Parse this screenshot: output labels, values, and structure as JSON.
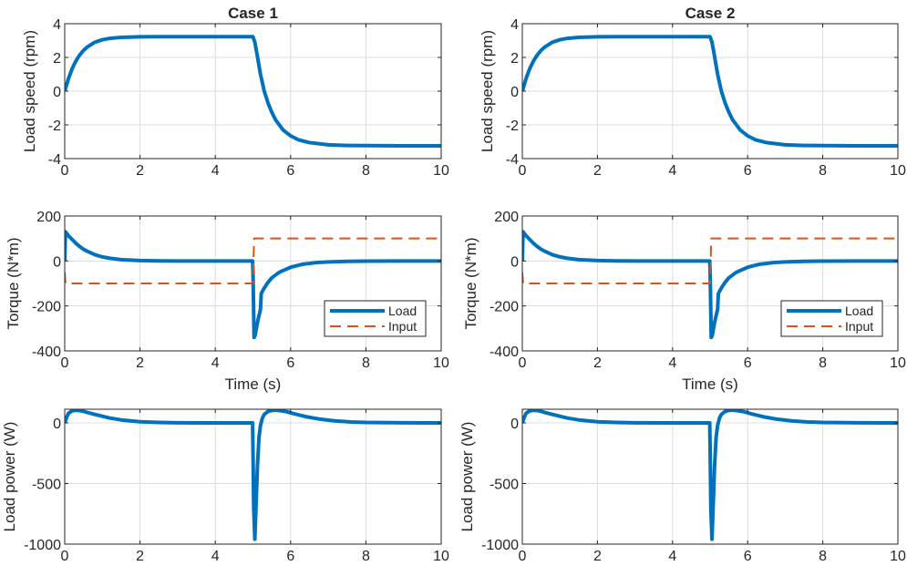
{
  "figure": {
    "background": "#ffffff",
    "colors": {
      "load": "#0072BD",
      "input": "#D95319",
      "grid": "#dcdcdc",
      "axis": "#262626"
    }
  },
  "chart_data": [
    {
      "id": "case1-speed",
      "column": 0,
      "row": 0,
      "type": "line",
      "title": "Case 1",
      "xlabel": "",
      "ylabel": "Load speed (rpm)",
      "xlim": [
        0,
        10
      ],
      "ylim": [
        -4,
        4
      ],
      "xticks": [
        0,
        2,
        4,
        6,
        8,
        10
      ],
      "xtick_labels": [
        "0",
        "2",
        "4",
        "6",
        "8",
        "10"
      ],
      "yticks": [
        -4,
        -2,
        0,
        2,
        4
      ],
      "ytick_labels": [
        "-4",
        "-2",
        "0",
        "2",
        "4"
      ],
      "grid": true,
      "legend": null,
      "series": [
        {
          "name": "Load speed",
          "color": "#0072BD",
          "style": "solid",
          "x": [
            0,
            0.1,
            0.2,
            0.3,
            0.4,
            0.5,
            0.6,
            0.8,
            1.0,
            1.2,
            1.5,
            2.0,
            2.5,
            3.0,
            4.0,
            5.0,
            5.05,
            5.1,
            5.2,
            5.3,
            5.4,
            5.5,
            5.6,
            5.8,
            6.0,
            6.2,
            6.5,
            7.0,
            7.5,
            8.0,
            9.0,
            10.0
          ],
          "y": [
            0,
            0.75,
            1.35,
            1.8,
            2.15,
            2.42,
            2.62,
            2.9,
            3.05,
            3.13,
            3.19,
            3.22,
            3.23,
            3.23,
            3.23,
            3.23,
            2.9,
            2.3,
            1.0,
            0.0,
            -0.7,
            -1.25,
            -1.7,
            -2.3,
            -2.65,
            -2.88,
            -3.05,
            -3.18,
            -3.22,
            -3.23,
            -3.24,
            -3.24
          ]
        }
      ]
    },
    {
      "id": "case1-torque",
      "column": 0,
      "row": 1,
      "type": "line",
      "title": "",
      "xlabel": "Time (s)",
      "ylabel": "Torque (N*m)",
      "xlim": [
        0,
        10
      ],
      "ylim": [
        -400,
        200
      ],
      "xticks": [
        0,
        2,
        4,
        6,
        8,
        10
      ],
      "xtick_labels": [
        "0",
        "2",
        "4",
        "6",
        "8",
        "10"
      ],
      "yticks": [
        -400,
        -200,
        0,
        200
      ],
      "ytick_labels": [
        "-400",
        "-200",
        "0",
        "200"
      ],
      "grid": true,
      "legend": {
        "location": "southeast",
        "entries": [
          "Load",
          "Input"
        ]
      },
      "series": [
        {
          "name": "Load",
          "color": "#0072BD",
          "style": "solid",
          "x": [
            0,
            0.02,
            0.1,
            0.2,
            0.3,
            0.4,
            0.5,
            0.6,
            0.8,
            1.0,
            1.2,
            1.5,
            2.0,
            2.5,
            3.0,
            4.0,
            4.99,
            5.0,
            5.03,
            5.06,
            5.1,
            5.15,
            5.2,
            5.22,
            5.3,
            5.4,
            5.5,
            5.7,
            6.0,
            6.3,
            6.7,
            7.0,
            7.5,
            8.0,
            9.0,
            10.0
          ],
          "y": [
            0,
            130,
            112,
            95,
            78,
            64,
            52,
            43,
            28,
            18,
            12,
            6,
            2,
            0.5,
            0,
            0,
            0,
            -40,
            -340,
            -330,
            -290,
            -250,
            -215,
            -145,
            -120,
            -95,
            -75,
            -50,
            -28,
            -15,
            -7,
            -4,
            -1.5,
            -0.5,
            0,
            0
          ]
        },
        {
          "name": "Input",
          "color": "#D95319",
          "style": "dashed",
          "x": [
            0,
            0.02,
            4.99,
            5.0,
            5.03,
            10.0
          ],
          "y": [
            -50,
            -100,
            -100,
            -100,
            100,
            100
          ]
        }
      ]
    },
    {
      "id": "case1-power",
      "column": 0,
      "row": 2,
      "type": "line",
      "title": "",
      "xlabel": "",
      "ylabel": "Load power (W)",
      "xlim": [
        0,
        10
      ],
      "ylim": [
        -1000,
        113
      ],
      "xticks": [
        0,
        2,
        4,
        6,
        8,
        10
      ],
      "xtick_labels": [
        "0",
        "2",
        "4",
        "6",
        "8",
        "10"
      ],
      "yticks": [
        -1000,
        -500,
        0
      ],
      "ytick_labels": [
        "-1000",
        "-500",
        "0"
      ],
      "grid": true,
      "legend": null,
      "series": [
        {
          "name": "Load power",
          "color": "#0072BD",
          "style": "solid",
          "x": [
            0,
            0.05,
            0.1,
            0.2,
            0.3,
            0.4,
            0.5,
            0.6,
            0.8,
            1.0,
            1.2,
            1.5,
            2.0,
            2.5,
            3.0,
            4.0,
            4.99,
            5.0,
            5.02,
            5.05,
            5.08,
            5.12,
            5.16,
            5.2,
            5.25,
            5.3,
            5.4,
            5.5,
            5.6,
            5.7,
            5.9,
            6.1,
            6.4,
            6.8,
            7.2,
            7.6,
            8.0,
            9.0,
            10.0
          ],
          "y": [
            0,
            45,
            80,
            100,
            104,
            102,
            95,
            86,
            70,
            55,
            40,
            25,
            10,
            4,
            1,
            0,
            0,
            -200,
            -700,
            -960,
            -700,
            -350,
            -120,
            -20,
            40,
            70,
            95,
            103,
            105,
            102,
            92,
            75,
            52,
            30,
            16,
            8,
            4,
            1,
            0
          ]
        }
      ]
    },
    {
      "id": "case2-speed",
      "column": 1,
      "row": 0,
      "type": "line",
      "title": "Case 2",
      "xlabel": "",
      "ylabel": "Load speed (rpm)",
      "xlim": [
        0,
        10
      ],
      "ylim": [
        -4,
        4
      ],
      "xticks": [
        0,
        2,
        4,
        6,
        8,
        10
      ],
      "xtick_labels": [
        "0",
        "2",
        "4",
        "6",
        "8",
        "10"
      ],
      "yticks": [
        -4,
        -2,
        0,
        2,
        4
      ],
      "ytick_labels": [
        "-4",
        "-2",
        "0",
        "2",
        "4"
      ],
      "grid": true,
      "legend": null,
      "series": [
        {
          "name": "Load speed",
          "color": "#0072BD",
          "style": "solid",
          "x": [
            0,
            0.1,
            0.2,
            0.3,
            0.4,
            0.5,
            0.6,
            0.8,
            1.0,
            1.2,
            1.5,
            2.0,
            2.5,
            3.0,
            4.0,
            5.0,
            5.05,
            5.1,
            5.2,
            5.3,
            5.4,
            5.5,
            5.6,
            5.8,
            6.0,
            6.2,
            6.5,
            7.0,
            7.5,
            8.0,
            9.0,
            10.0
          ],
          "y": [
            0,
            0.75,
            1.35,
            1.8,
            2.15,
            2.42,
            2.62,
            2.9,
            3.05,
            3.13,
            3.19,
            3.22,
            3.23,
            3.23,
            3.23,
            3.23,
            2.9,
            2.3,
            1.0,
            0.0,
            -0.7,
            -1.25,
            -1.7,
            -2.3,
            -2.65,
            -2.88,
            -3.05,
            -3.18,
            -3.22,
            -3.23,
            -3.24,
            -3.24
          ]
        }
      ]
    },
    {
      "id": "case2-torque",
      "column": 1,
      "row": 1,
      "type": "line",
      "title": "",
      "xlabel": "Time (s)",
      "ylabel": "Torque (N*m)",
      "xlim": [
        0,
        10
      ],
      "ylim": [
        -400,
        200
      ],
      "xticks": [
        0,
        2,
        4,
        6,
        8,
        10
      ],
      "xtick_labels": [
        "0",
        "2",
        "4",
        "6",
        "8",
        "10"
      ],
      "yticks": [
        -400,
        -200,
        0,
        200
      ],
      "ytick_labels": [
        "-400",
        "-200",
        "0",
        "200"
      ],
      "grid": true,
      "legend": {
        "location": "southeast",
        "entries": [
          "Load",
          "Input"
        ]
      },
      "series": [
        {
          "name": "Load",
          "color": "#0072BD",
          "style": "solid",
          "x": [
            0,
            0.02,
            0.1,
            0.2,
            0.3,
            0.4,
            0.5,
            0.6,
            0.8,
            1.0,
            1.2,
            1.5,
            2.0,
            2.5,
            3.0,
            4.0,
            4.99,
            5.0,
            5.03,
            5.06,
            5.1,
            5.15,
            5.2,
            5.22,
            5.3,
            5.4,
            5.5,
            5.7,
            6.0,
            6.3,
            6.7,
            7.0,
            7.5,
            8.0,
            9.0,
            10.0
          ],
          "y": [
            0,
            130,
            112,
            95,
            78,
            64,
            52,
            43,
            28,
            18,
            12,
            6,
            2,
            0.5,
            0,
            0,
            0,
            -40,
            -340,
            -330,
            -290,
            -250,
            -215,
            -145,
            -120,
            -95,
            -75,
            -50,
            -28,
            -15,
            -7,
            -4,
            -1.5,
            -0.5,
            0,
            0
          ]
        },
        {
          "name": "Input",
          "color": "#D95319",
          "style": "dashed",
          "x": [
            0,
            0.02,
            4.99,
            5.0,
            5.03,
            10.0
          ],
          "y": [
            -50,
            -100,
            -100,
            -100,
            100,
            100
          ]
        }
      ]
    },
    {
      "id": "case2-power",
      "column": 1,
      "row": 2,
      "type": "line",
      "title": "",
      "xlabel": "",
      "ylabel": "Load power (W)",
      "xlim": [
        0,
        10
      ],
      "ylim": [
        -1000,
        113
      ],
      "xticks": [
        0,
        2,
        4,
        6,
        8,
        10
      ],
      "xtick_labels": [
        "0",
        "2",
        "4",
        "6",
        "8",
        "10"
      ],
      "yticks": [
        -1000,
        -500,
        0
      ],
      "ytick_labels": [
        "-1000",
        "-500",
        "0"
      ],
      "grid": true,
      "legend": null,
      "series": [
        {
          "name": "Load power",
          "color": "#0072BD",
          "style": "solid",
          "x": [
            0,
            0.05,
            0.1,
            0.2,
            0.3,
            0.4,
            0.5,
            0.6,
            0.8,
            1.0,
            1.2,
            1.5,
            2.0,
            2.5,
            3.0,
            4.0,
            4.99,
            5.0,
            5.02,
            5.05,
            5.08,
            5.12,
            5.16,
            5.2,
            5.25,
            5.3,
            5.4,
            5.5,
            5.6,
            5.7,
            5.9,
            6.1,
            6.4,
            6.8,
            7.2,
            7.6,
            8.0,
            9.0,
            10.0
          ],
          "y": [
            0,
            45,
            80,
            100,
            104,
            102,
            95,
            86,
            70,
            55,
            40,
            25,
            10,
            4,
            1,
            0,
            0,
            -200,
            -700,
            -960,
            -700,
            -350,
            -120,
            -20,
            40,
            70,
            95,
            103,
            105,
            102,
            92,
            75,
            52,
            30,
            16,
            8,
            4,
            1,
            0
          ]
        }
      ]
    }
  ]
}
